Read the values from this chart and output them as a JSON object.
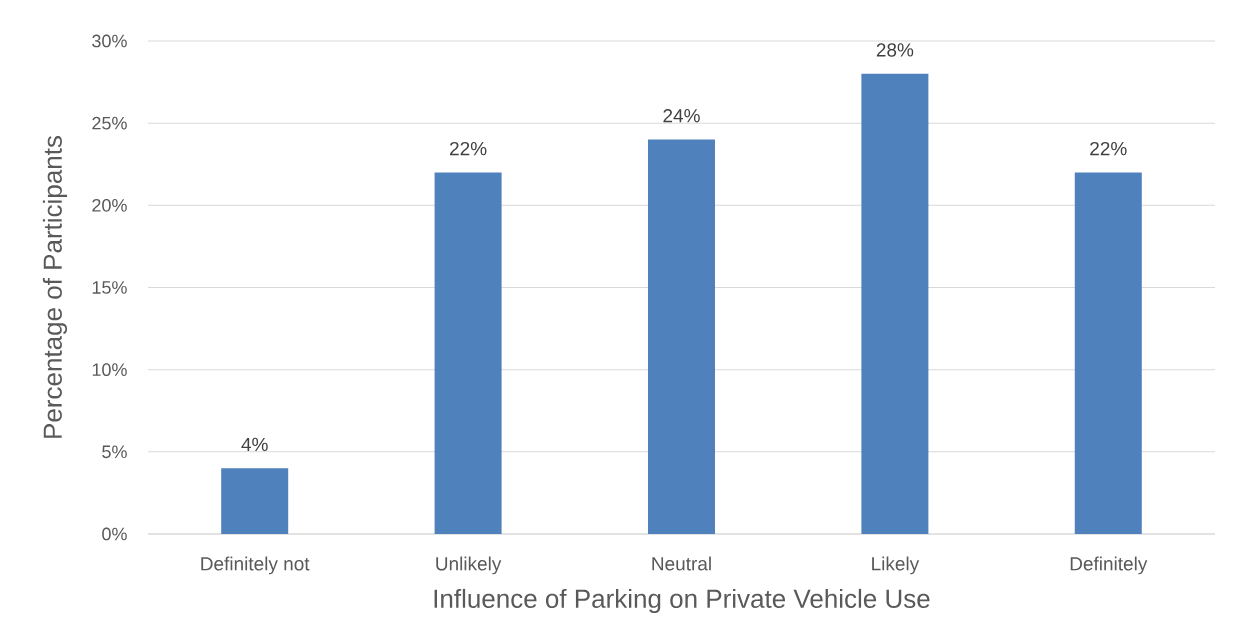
{
  "chart_data": {
    "type": "bar",
    "xlabel": "Influence of Parking on Private Vehicle Use",
    "ylabel": "Percentage of Participants",
    "categories": [
      "Definitely not",
      "Unlikely",
      "Neutral",
      "Likely",
      "Definitely"
    ],
    "values": [
      4,
      22,
      24,
      28,
      22
    ],
    "color": "#4f81bd",
    "value_labels": [
      "4%",
      "22%",
      "24%",
      "28%",
      "22%"
    ],
    "ylim": [
      0,
      30
    ],
    "yticks": [
      {
        "value": 0,
        "label": "0%"
      },
      {
        "value": 5,
        "label": "5%"
      },
      {
        "value": 10,
        "label": "10%"
      },
      {
        "value": 15,
        "label": "15%"
      },
      {
        "value": 20,
        "label": "20%"
      },
      {
        "value": 25,
        "label": "25%"
      },
      {
        "value": 30,
        "label": "30%"
      }
    ],
    "grid": "y"
  }
}
